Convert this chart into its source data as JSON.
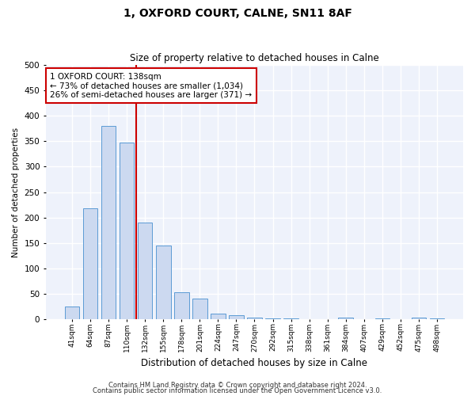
{
  "title": "1, OXFORD COURT, CALNE, SN11 8AF",
  "subtitle": "Size of property relative to detached houses in Calne",
  "xlabel": "Distribution of detached houses by size in Calne",
  "ylabel": "Number of detached properties",
  "categories": [
    "41sqm",
    "64sqm",
    "87sqm",
    "110sqm",
    "132sqm",
    "155sqm",
    "178sqm",
    "201sqm",
    "224sqm",
    "247sqm",
    "270sqm",
    "292sqm",
    "315sqm",
    "338sqm",
    "361sqm",
    "384sqm",
    "407sqm",
    "429sqm",
    "452sqm",
    "475sqm",
    "498sqm"
  ],
  "values": [
    25,
    218,
    380,
    348,
    190,
    145,
    53,
    40,
    11,
    8,
    4,
    2,
    1,
    0,
    0,
    4,
    0,
    2,
    0,
    3,
    2
  ],
  "bar_color": "#ccd9f0",
  "bar_edge_color": "#5b9bd5",
  "vline_color": "#cc0000",
  "annotation_text": "1 OXFORD COURT: 138sqm\n← 73% of detached houses are smaller (1,034)\n26% of semi-detached houses are larger (371) →",
  "annotation_box_color": "#cc0000",
  "background_color": "#eef2fb",
  "grid_color": "#ffffff",
  "ylim": [
    0,
    500
  ],
  "yticks": [
    0,
    50,
    100,
    150,
    200,
    250,
    300,
    350,
    400,
    450,
    500
  ],
  "vline_index": 4,
  "footer1": "Contains HM Land Registry data © Crown copyright and database right 2024.",
  "footer2": "Contains public sector information licensed under the Open Government Licence v3.0."
}
